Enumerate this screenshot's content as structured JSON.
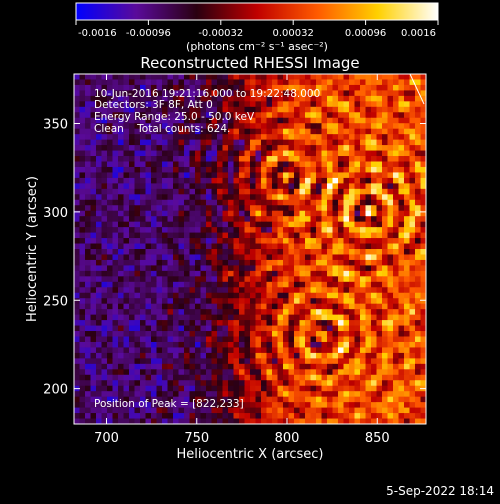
{
  "chart_data": {
    "type": "heatmap",
    "title": "Reconstructed RHESSI Image",
    "xlabel": "Heliocentric X (arcsec)",
    "ylabel": "Heliocentric Y (arcsec)",
    "xlim": [
      682,
      877
    ],
    "ylim": [
      180,
      378
    ],
    "x_ticks": [
      700,
      750,
      800,
      850
    ],
    "y_ticks": [
      200,
      250,
      300,
      350
    ],
    "colorbar": {
      "min": -0.0016,
      "max": 0.0016,
      "ticks": [
        "-0.0016",
        "-0.00096",
        "-0.00032",
        "0.00032",
        "0.00096",
        "0.0016"
      ],
      "unit_label": "(photons cm⁻² s⁻¹ asec⁻²)",
      "colormap": [
        "#0000ff",
        "#5a0a9a",
        "#2a0010",
        "#c00000",
        "#ff5a00",
        "#ffd000",
        "#ffffff"
      ]
    },
    "annotations": [
      "10-Jun-2016 19:21:16.000 to 19:22:48.000",
      "Detectors: 3F 8F, Att 0",
      "Energy Range: 25.0 - 50.0 keV",
      "Clean    Total counts: 624.",
      "Position of Peak = [822,233]"
    ],
    "peak": {
      "x": 822,
      "y": 233
    },
    "bright_regions": [
      {
        "x": 845,
        "y": 300
      },
      {
        "x": 820,
        "y": 230
      },
      {
        "x": 800,
        "y": 320
      }
    ]
  },
  "footer": {
    "date": "5-Sep-2022 18:14"
  }
}
